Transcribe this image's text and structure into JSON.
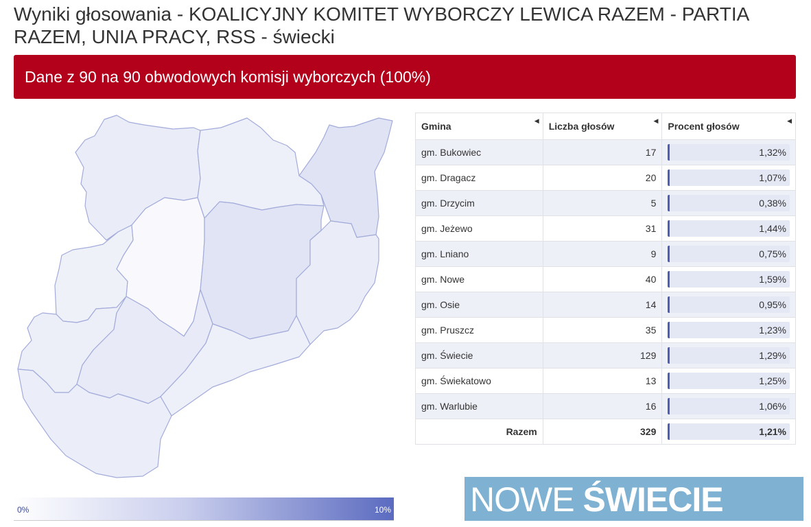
{
  "header": {
    "title": "Wyniki głosowania - KOALICYJNY KOMITET WYBORCZY LEWICA RAZEM - PARTIA RAZEM, UNIA PRACY, RSS - świecki",
    "banner": "Dane z 90 na 90 obwodowych komisji wyborczych (100%)"
  },
  "legend": {
    "min": "0%",
    "max": "10%"
  },
  "table": {
    "headers": {
      "gmina": "Gmina",
      "count": "Liczba głosów",
      "pct": "Procent głosów"
    },
    "rows": [
      {
        "gmina": "gm. Bukowiec",
        "count": "17",
        "pct": "1,32%"
      },
      {
        "gmina": "gm. Dragacz",
        "count": "20",
        "pct": "1,07%"
      },
      {
        "gmina": "gm. Drzycim",
        "count": "5",
        "pct": "0,38%"
      },
      {
        "gmina": "gm. Jeżewo",
        "count": "31",
        "pct": "1,44%"
      },
      {
        "gmina": "gm. Lniano",
        "count": "9",
        "pct": "0,75%"
      },
      {
        "gmina": "gm. Nowe",
        "count": "40",
        "pct": "1,59%"
      },
      {
        "gmina": "gm. Osie",
        "count": "14",
        "pct": "0,95%"
      },
      {
        "gmina": "gm. Pruszcz",
        "count": "35",
        "pct": "1,23%"
      },
      {
        "gmina": "gm. Świecie",
        "count": "129",
        "pct": "1,29%"
      },
      {
        "gmina": "gm. Świekatowo",
        "count": "13",
        "pct": "1,25%"
      },
      {
        "gmina": "gm. Warlubie",
        "count": "16",
        "pct": "1,06%"
      }
    ],
    "total": {
      "label": "Razem",
      "count": "329",
      "pct": "1,21%"
    }
  },
  "logo": {
    "part1": "NOWE ",
    "part2": "ŚWIECIE"
  },
  "colors": {
    "banner": "#b3001b",
    "bar_accent": "#4f5eb4",
    "map_stroke": "#a3abda",
    "logo_bg": "#7fb2d2"
  }
}
